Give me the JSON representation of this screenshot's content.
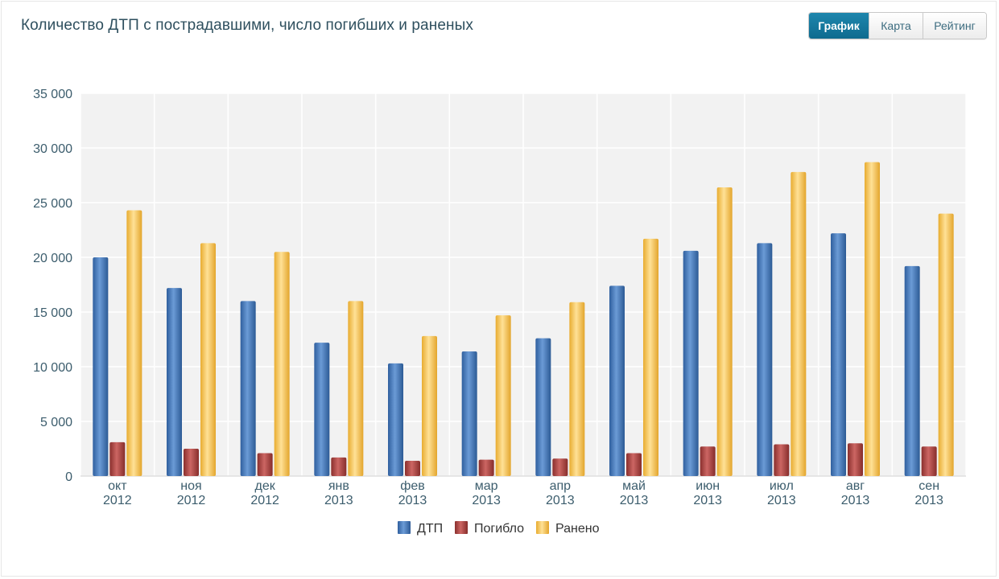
{
  "header": {
    "title": "Количество ДТП с пострадавшими, число погибших и раненых"
  },
  "tabs": [
    {
      "label": "График",
      "active": true
    },
    {
      "label": "Карта",
      "active": false
    },
    {
      "label": "Рейтинг",
      "active": false
    }
  ],
  "chart_data": {
    "type": "bar",
    "title": "Количество ДТП с пострадавшими, число погибших и раненых",
    "xlabel": "",
    "ylabel": "",
    "ylim": [
      0,
      35000
    ],
    "yticks": [
      0,
      5000,
      10000,
      15000,
      20000,
      25000,
      30000,
      35000
    ],
    "ytick_labels": [
      "0",
      "5 000",
      "10 000",
      "15 000",
      "20 000",
      "25 000",
      "30 000",
      "35 000"
    ],
    "grid": true,
    "legend_position": "bottom-center",
    "categories": [
      [
        "окт",
        "2012"
      ],
      [
        "ноя",
        "2012"
      ],
      [
        "дек",
        "2012"
      ],
      [
        "янв",
        "2013"
      ],
      [
        "фев",
        "2013"
      ],
      [
        "мар",
        "2013"
      ],
      [
        "апр",
        "2013"
      ],
      [
        "май",
        "2013"
      ],
      [
        "июн",
        "2013"
      ],
      [
        "июл",
        "2013"
      ],
      [
        "авг",
        "2013"
      ],
      [
        "сен",
        "2013"
      ]
    ],
    "series": [
      {
        "name": "ДТП",
        "color": "#4a7ab8",
        "values": [
          20000,
          17200,
          16000,
          12200,
          10300,
          11400,
          12600,
          17400,
          20600,
          21300,
          22200,
          19200
        ]
      },
      {
        "name": "Погибло",
        "color": "#a84240",
        "values": [
          3100,
          2500,
          2100,
          1700,
          1400,
          1500,
          1600,
          2100,
          2700,
          2900,
          3000,
          2700
        ]
      },
      {
        "name": "Ранено",
        "color": "#f5c755",
        "values": [
          24300,
          21300,
          20500,
          16000,
          12800,
          14700,
          15900,
          21700,
          26400,
          27800,
          28700,
          24000
        ]
      }
    ]
  }
}
